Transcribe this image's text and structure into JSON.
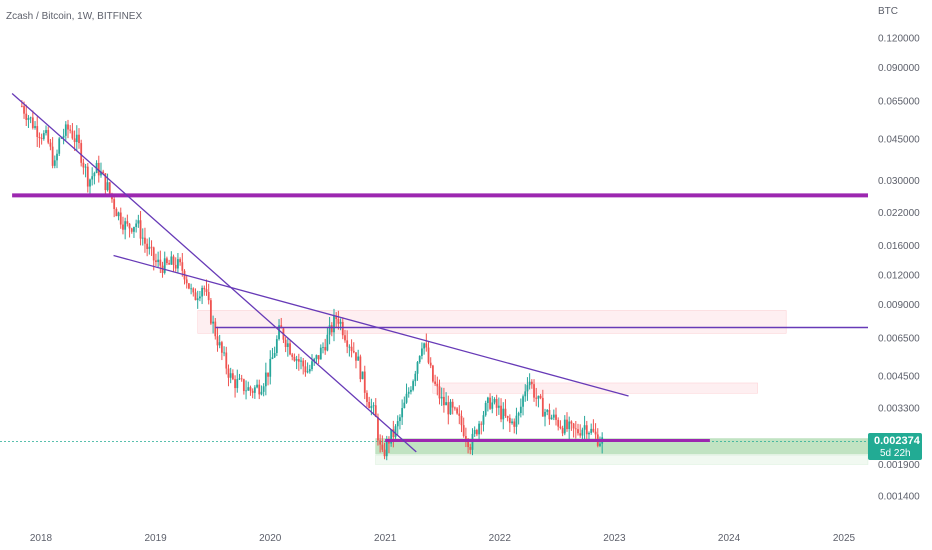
{
  "header": {
    "title": "Zcash / Bitcoin, 1W, BITFINEX"
  },
  "price_badge": {
    "price": "0.002374",
    "countdown": "5d 22h",
    "color": "#22ab94"
  },
  "colors": {
    "up": "#26a69a",
    "down": "#ef5350",
    "trend": "#673ab7",
    "level": "#9c27b0",
    "zone_red": "#f7525f",
    "zone_green": "#4caf50",
    "price_line": "#22ab94"
  },
  "chart_data": {
    "type": "candlestick",
    "title": "Zcash / Bitcoin, 1W, BITFINEX",
    "y_unit": "BTC",
    "y_scale": "log",
    "y_ticks": [
      "0.120000",
      "0.090000",
      "0.065000",
      "0.045000",
      "0.030000",
      "0.022000",
      "0.016000",
      "0.012000",
      "0.009000",
      "0.006500",
      "0.004500",
      "0.003300",
      "0.002374",
      "0.001900",
      "0.001400"
    ],
    "x_ticks": [
      "2018",
      "2019",
      "2020",
      "2021",
      "2022",
      "2023",
      "2024",
      "2025"
    ],
    "last_price": 0.002374,
    "series_path": [
      [
        "2017-11-01",
        0.062
      ],
      [
        "2017-12-15",
        0.05
      ],
      [
        "2018-01-20",
        0.045
      ],
      [
        "2018-02-15",
        0.034
      ],
      [
        "2018-03-01",
        0.045
      ],
      [
        "2018-04-01",
        0.05
      ],
      [
        "2018-05-01",
        0.042
      ],
      [
        "2018-06-01",
        0.03
      ],
      [
        "2018-07-01",
        0.034
      ],
      [
        "2018-08-01",
        0.028
      ],
      [
        "2018-09-01",
        0.022
      ],
      [
        "2018-10-01",
        0.019
      ],
      [
        "2018-11-01",
        0.02
      ],
      [
        "2018-12-01",
        0.016
      ],
      [
        "2019-01-01",
        0.0135
      ],
      [
        "2019-02-01",
        0.013
      ],
      [
        "2019-03-01",
        0.0135
      ],
      [
        "2019-04-01",
        0.0125
      ],
      [
        "2019-05-01",
        0.0095
      ],
      [
        "2019-06-01",
        0.011
      ],
      [
        "2019-07-01",
        0.0075
      ],
      [
        "2019-08-01",
        0.0055
      ],
      [
        "2019-09-01",
        0.0043
      ],
      [
        "2019-10-01",
        0.0041
      ],
      [
        "2019-11-01",
        0.0039
      ],
      [
        "2019-12-01",
        0.0041
      ],
      [
        "2020-01-01",
        0.0049
      ],
      [
        "2020-02-01",
        0.0071
      ],
      [
        "2020-03-01",
        0.006
      ],
      [
        "2020-04-01",
        0.0052
      ],
      [
        "2020-05-01",
        0.0047
      ],
      [
        "2020-06-01",
        0.0054
      ],
      [
        "2020-07-01",
        0.0065
      ],
      [
        "2020-08-01",
        0.0081
      ],
      [
        "2020-09-01",
        0.0065
      ],
      [
        "2020-10-01",
        0.0055
      ],
      [
        "2020-11-01",
        0.0038
      ],
      [
        "2020-12-01",
        0.003
      ],
      [
        "2020-12-21",
        0.002
      ],
      [
        "2021-01-10",
        0.0024
      ],
      [
        "2021-02-01",
        0.0026
      ],
      [
        "2021-03-01",
        0.0033
      ],
      [
        "2021-04-01",
        0.0045
      ],
      [
        "2021-05-01",
        0.0065
      ],
      [
        "2021-06-01",
        0.0043
      ],
      [
        "2021-07-01",
        0.0035
      ],
      [
        "2021-08-01",
        0.0032
      ],
      [
        "2021-09-01",
        0.0028
      ],
      [
        "2021-10-01",
        0.0023
      ],
      [
        "2021-11-01",
        0.003
      ],
      [
        "2021-12-01",
        0.0035
      ],
      [
        "2022-01-01",
        0.0032
      ],
      [
        "2022-02-01",
        0.0028
      ],
      [
        "2022-03-01",
        0.003
      ],
      [
        "2022-04-01",
        0.0045
      ],
      [
        "2022-05-01",
        0.0035
      ],
      [
        "2022-06-01",
        0.0031
      ],
      [
        "2022-07-01",
        0.0029
      ],
      [
        "2022-08-01",
        0.0027
      ],
      [
        "2022-09-01",
        0.0026
      ],
      [
        "2022-10-01",
        0.0028
      ],
      [
        "2022-11-01",
        0.0025
      ],
      [
        "2022-11-25",
        0.002374
      ]
    ],
    "horizontal_levels": [
      {
        "price": 0.026,
        "from": "2017-10-01",
        "to": "2025-12-31",
        "color": "#9c27b0",
        "width": 4
      },
      {
        "price": 0.0072,
        "from": "2019-07-10",
        "to": "2025-12-31",
        "color": "#673ab7",
        "width": 1.5
      },
      {
        "price": 0.0024,
        "from": "2021-01-01",
        "to": "2023-11-01",
        "color": "#9c27b0",
        "width": 3
      }
    ],
    "trendlines": [
      {
        "from": [
          "2017-10-01",
          0.07
        ],
        "to": [
          "2021-04-10",
          0.00215
        ]
      },
      {
        "from": [
          "2018-08-20",
          0.0145
        ],
        "to": [
          "2023-02-15",
          0.0037
        ]
      }
    ],
    "zones": [
      {
        "from": "2019-05-15",
        "to": "2024-07-01",
        "top": 0.0085,
        "bottom": 0.0068,
        "kind": "red"
      },
      {
        "from": "2021-06-01",
        "to": "2024-04-01",
        "top": 0.0042,
        "bottom": 0.0038,
        "kind": "red"
      },
      {
        "from": "2020-12-01",
        "to": "2025-12-31",
        "top": 0.00245,
        "bottom": 0.0021,
        "kind": "green"
      },
      {
        "from": "2020-12-01",
        "to": "2025-12-31",
        "top": 0.00208,
        "bottom": 0.0019,
        "kind": "green_light"
      }
    ]
  }
}
